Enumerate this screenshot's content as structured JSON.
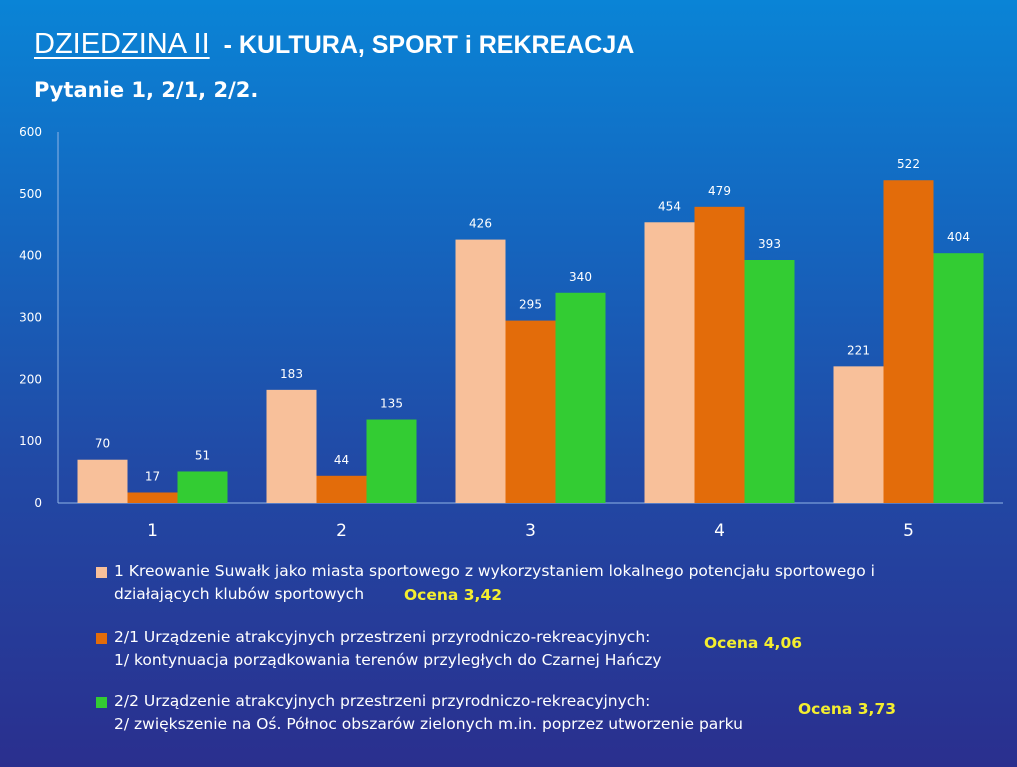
{
  "title": {
    "main": "DZIEDZINA II",
    "rest": "- KULTURA, SPORT i REKREACJA",
    "subtitle": "Pytanie  1, 2/1, 2/2."
  },
  "colors": {
    "series1": "#f8c09a",
    "series2": "#e36c0a",
    "series3": "#33cc33",
    "axis_text": "#ffffff",
    "score_text": "#f4ee2f"
  },
  "legend": [
    {
      "line1": "1 Kreowanie Suwałk jako miasta sportowego z wykorzystaniem lokalnego potencjału sportowego i",
      "line2": "działających klubów sportowych",
      "score": "Ocena 3,42"
    },
    {
      "line1": "2/1 Urządzenie atrakcyjnych przestrzeni przyrodniczo-rekreacyjnych:",
      "line2": "1/ kontynuacja porządkowania terenów przyległych do Czarnej Hańczy",
      "score": "Ocena 4,06"
    },
    {
      "line1": "2/2 Urządzenie atrakcyjnych przestrzeni przyrodniczo-rekreacyjnych:",
      "line2": "2/ zwiększenie na Oś. Północ obszarów zielonych m.in. poprzez utworzenie parku",
      "score": "Ocena 3,73"
    }
  ],
  "chart_data": {
    "type": "bar",
    "title": "",
    "xlabel": "",
    "ylabel": "",
    "categories": [
      "1",
      "2",
      "3",
      "4",
      "5"
    ],
    "ylim": [
      0,
      600
    ],
    "yticks": [
      0,
      100,
      200,
      300,
      400,
      500,
      600
    ],
    "grid": false,
    "legend_position": "bottom",
    "series": [
      {
        "values": [
          70,
          183,
          426,
          454,
          221
        ],
        "color": "#f8c09a"
      },
      {
        "values": [
          17,
          44,
          295,
          479,
          522
        ],
        "color": "#e36c0a"
      },
      {
        "values": [
          51,
          135,
          340,
          393,
          404
        ],
        "color": "#33cc33"
      }
    ]
  }
}
